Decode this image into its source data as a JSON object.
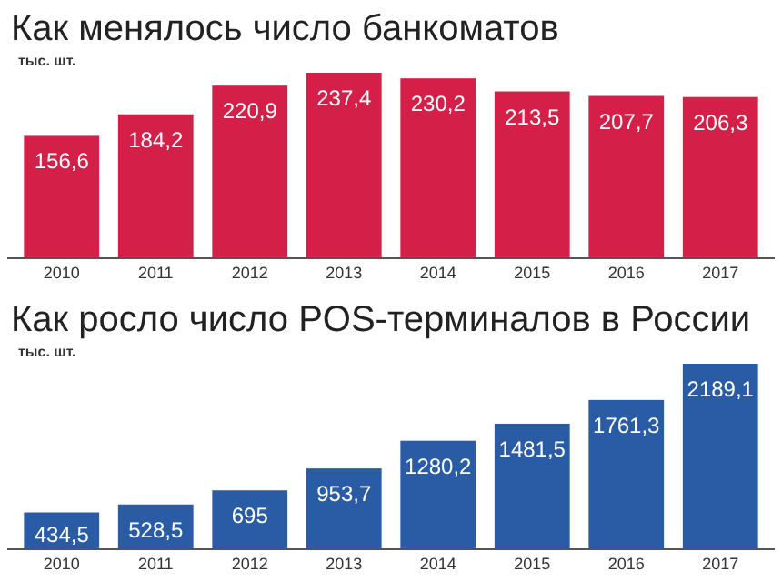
{
  "chart_data": [
    {
      "type": "bar",
      "title": "Как менялось число банкоматов",
      "ylabel": "тыс. шт.",
      "categories": [
        "2010",
        "2011",
        "2012",
        "2013",
        "2014",
        "2015",
        "2016",
        "2017"
      ],
      "values": [
        156.6,
        184.2,
        220.9,
        237.4,
        230.2,
        213.5,
        207.7,
        206.3
      ],
      "value_labels": [
        "156,6",
        "184,2",
        "220,9",
        "237,4",
        "230,2",
        "213,5",
        "207,7",
        "206,3"
      ],
      "color": "#d42048"
    },
    {
      "type": "bar",
      "title": "Как росло число POS-терминалов в России",
      "ylabel": "тыс. шт.",
      "categories": [
        "2010",
        "2011",
        "2012",
        "2013",
        "2014",
        "2015",
        "2016",
        "2017"
      ],
      "values": [
        434.5,
        528.5,
        695,
        953.7,
        1280.2,
        1481.5,
        1761.3,
        2189.1
      ],
      "value_labels": [
        "434,5",
        "528,5",
        "695",
        "953,7",
        "1280,2",
        "1481,5",
        "1761,3",
        "2189,1"
      ],
      "color": "#2a5ca6"
    }
  ]
}
